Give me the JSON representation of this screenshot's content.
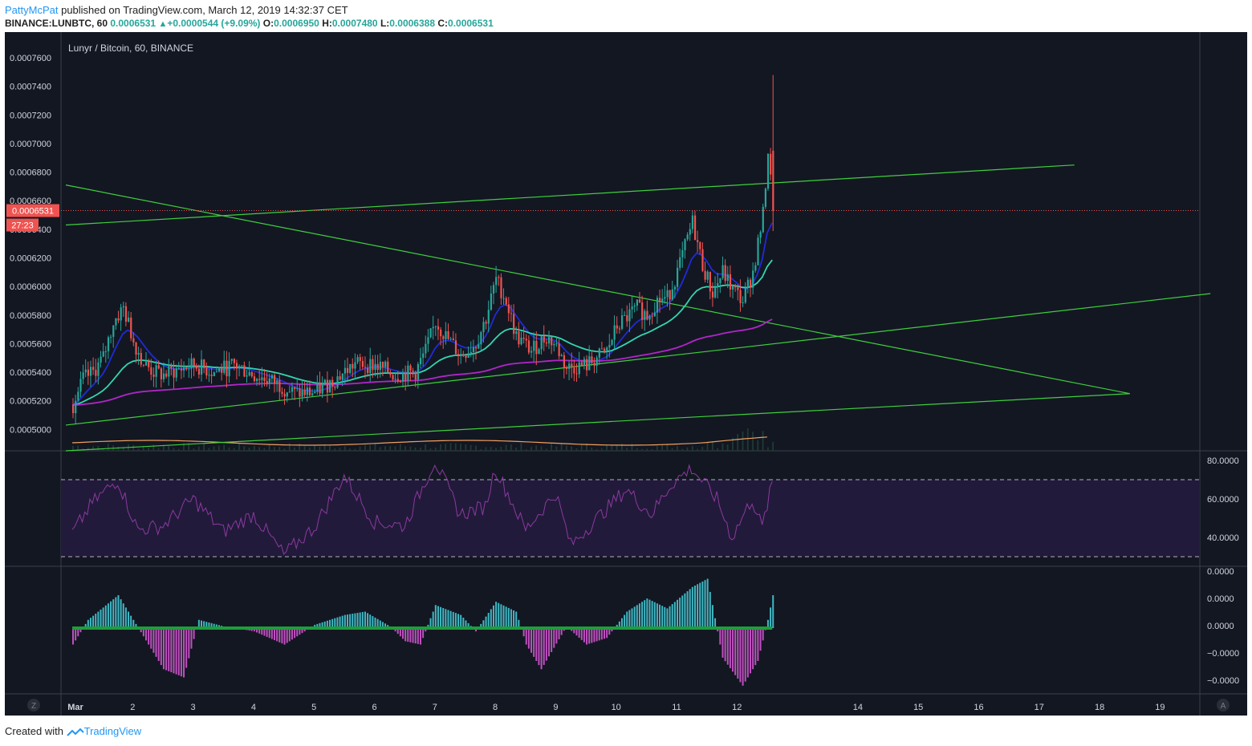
{
  "header": {
    "user": "PattyMcPat",
    "published": "published on TradingView.com, March 12, 2019 14:32:37 CET",
    "symbol": "BINANCE:LUNBTC, 60",
    "last": "0.0006531",
    "change_arrow": "▲",
    "change": "+0.0000544 (+9.09%)",
    "o_label": "O:",
    "o_value": "0.0006950",
    "h_label": "H:",
    "h_value": "0.0007480",
    "l_label": "L:",
    "l_value": "0.0006388",
    "c_label": "C:",
    "c_value": "0.0006531"
  },
  "pane_title": "Lunyr / Bitcoin, 60, BINANCE",
  "price_marker": {
    "value": "0.0006531",
    "countdown": "27:23"
  },
  "circle_buttons": {
    "left": "Z",
    "right": "A"
  },
  "footer": {
    "created_with": "Created with",
    "brand": "TradingView"
  },
  "colors": {
    "background": "#131722",
    "up": "#26a69a",
    "down": "#ef5350",
    "trendline": "#3ecf3e",
    "ema_fast": "#1f2bd6",
    "ema_mid": "#33d6b0",
    "ema_slow": "#b026c8",
    "volume_ma": "#f0a060",
    "rsi": "#8a3aa0",
    "macd_pos": "#3fb8c4",
    "macd_neg": "#c050c0"
  },
  "chart_data": [
    {
      "type": "candlestick",
      "title": "Lunyr / Bitcoin, 60, BINANCE",
      "interval_minutes": 60,
      "x_ticks": [
        "Mar",
        "2",
        "3",
        "4",
        "5",
        "6",
        "7",
        "8",
        "9",
        "10",
        "11",
        "12",
        "14",
        "15",
        "16",
        "17",
        "18",
        "19"
      ],
      "y_ticks": [
        "0.0005000",
        "0.0005200",
        "0.0005400",
        "0.0005600",
        "0.0005800",
        "0.0006000",
        "0.0006200",
        "0.0006400",
        "0.0006600",
        "0.0006800",
        "0.0007000",
        "0.0007200",
        "0.0007400",
        "0.0007600"
      ],
      "ylim": [
        0.000485,
        0.000778
      ],
      "x_range_days": [
        "2019-03-01",
        "2019-03-20"
      ],
      "price_path": [
        [
          "2019-03-01 00:00",
          0.000517
        ],
        [
          "2019-03-01 04:00",
          0.000535
        ],
        [
          "2019-03-01 08:00",
          0.00054
        ],
        [
          "2019-03-01 12:00",
          0.00055
        ],
        [
          "2019-03-01 16:00",
          0.000575
        ],
        [
          "2019-03-01 20:00",
          0.000585
        ],
        [
          "2019-03-02 00:00",
          0.000562
        ],
        [
          "2019-03-02 04:00",
          0.000546
        ],
        [
          "2019-03-02 08:00",
          0.00054
        ],
        [
          "2019-03-02 12:00",
          0.000538
        ],
        [
          "2019-03-02 18:00",
          0.000542
        ],
        [
          "2019-03-03 00:00",
          0.000545
        ],
        [
          "2019-03-03 08:00",
          0.00054
        ],
        [
          "2019-03-03 16:00",
          0.000545
        ],
        [
          "2019-03-04 00:00",
          0.000538
        ],
        [
          "2019-03-04 08:00",
          0.000533
        ],
        [
          "2019-03-04 16:00",
          0.000525
        ],
        [
          "2019-03-05 00:00",
          0.000526
        ],
        [
          "2019-03-05 08:00",
          0.000535
        ],
        [
          "2019-03-05 16:00",
          0.000546
        ],
        [
          "2019-03-06 00:00",
          0.000545
        ],
        [
          "2019-03-06 08:00",
          0.000538
        ],
        [
          "2019-03-06 16:00",
          0.00054
        ],
        [
          "2019-03-06 20:00",
          0.000555
        ],
        [
          "2019-03-07 00:00",
          0.000575
        ],
        [
          "2019-03-07 04:00",
          0.000565
        ],
        [
          "2019-03-07 10:00",
          0.000552
        ],
        [
          "2019-03-07 16:00",
          0.00056
        ],
        [
          "2019-03-07 20:00",
          0.000578
        ],
        [
          "2019-03-08 00:00",
          0.000605
        ],
        [
          "2019-03-08 04:00",
          0.00059
        ],
        [
          "2019-03-08 08:00",
          0.000565
        ],
        [
          "2019-03-08 14:00",
          0.000555
        ],
        [
          "2019-03-08 20:00",
          0.000565
        ],
        [
          "2019-03-09 00:00",
          0.000558
        ],
        [
          "2019-03-09 04:00",
          0.000543
        ],
        [
          "2019-03-09 12:00",
          0.000545
        ],
        [
          "2019-03-09 20:00",
          0.000555
        ],
        [
          "2019-03-10 00:00",
          0.000572
        ],
        [
          "2019-03-10 08:00",
          0.000585
        ],
        [
          "2019-03-10 12:00",
          0.00058
        ],
        [
          "2019-03-10 16:00",
          0.00059
        ],
        [
          "2019-03-10 20:00",
          0.000592
        ],
        [
          "2019-03-11 00:00",
          0.00061
        ],
        [
          "2019-03-11 06:00",
          0.000645
        ],
        [
          "2019-03-11 10:00",
          0.000615
        ],
        [
          "2019-03-11 14:00",
          0.000595
        ],
        [
          "2019-03-11 18:00",
          0.00061
        ],
        [
          "2019-03-11 22:00",
          0.000598
        ],
        [
          "2019-03-12 02:00",
          0.00059
        ],
        [
          "2019-03-12 06:00",
          0.00061
        ],
        [
          "2019-03-12 10:00",
          0.00065
        ],
        [
          "2019-03-12 12:00",
          0.000695
        ],
        [
          "2019-03-12 14:00",
          0.0006531
        ]
      ],
      "last_candle": {
        "open": 0.000695,
        "high": 0.000748,
        "low": 0.0006388,
        "close": 0.0006531
      },
      "overlays": [
        {
          "kind": "ema_fast"
        },
        {
          "kind": "ema_mid"
        },
        {
          "kind": "ema_slow"
        },
        {
          "kind": "volume_ma"
        }
      ],
      "trendlines": [
        {
          "from": [
            "2019-03-01 00:00",
            0.000643
          ],
          "to": [
            "2019-03-17 14:00",
            0.000685
          ]
        },
        {
          "from": [
            "2019-03-01 00:00",
            0.000671
          ],
          "to": [
            "2019-03-18 12:00",
            0.000525
          ]
        },
        {
          "from": [
            "2019-03-01 00:00",
            0.000503
          ],
          "to": [
            "2019-03-19 20:00",
            0.000595
          ]
        },
        {
          "from": [
            "2019-03-01 00:00",
            0.000485
          ],
          "to": [
            "2019-03-18 12:00",
            0.000525
          ]
        }
      ],
      "last_price_line": 0.0006531
    },
    {
      "type": "line",
      "indicator": "RSI",
      "y_ticks": [
        "40.0000",
        "60.0000",
        "80.0000"
      ],
      "ylim": [
        25,
        85
      ],
      "band": [
        30,
        70
      ],
      "values_path": [
        [
          "2019-03-01 00:00",
          42
        ],
        [
          "2019-03-01 08:00",
          58
        ],
        [
          "2019-03-01 18:00",
          70
        ],
        [
          "2019-03-02 02:00",
          44
        ],
        [
          "2019-03-02 12:00",
          46
        ],
        [
          "2019-03-03 00:00",
          60
        ],
        [
          "2019-03-03 12:00",
          43
        ],
        [
          "2019-03-04 00:00",
          52
        ],
        [
          "2019-03-04 12:00",
          31
        ],
        [
          "2019-03-05 00:00",
          45
        ],
        [
          "2019-03-05 12:00",
          72
        ],
        [
          "2019-03-06 00:00",
          48
        ],
        [
          "2019-03-06 12:00",
          46
        ],
        [
          "2019-03-07 00:00",
          80
        ],
        [
          "2019-03-07 10:00",
          52
        ],
        [
          "2019-03-07 20:00",
          56
        ],
        [
          "2019-03-08 00:00",
          76
        ],
        [
          "2019-03-08 12:00",
          44
        ],
        [
          "2019-03-09 00:00",
          63
        ],
        [
          "2019-03-09 06:00",
          36
        ],
        [
          "2019-03-09 18:00",
          52
        ],
        [
          "2019-03-10 04:00",
          65
        ],
        [
          "2019-03-10 14:00",
          52
        ],
        [
          "2019-03-10 22:00",
          68
        ],
        [
          "2019-03-11 06:00",
          76
        ],
        [
          "2019-03-11 16:00",
          60
        ],
        [
          "2019-03-11 22:00",
          40
        ],
        [
          "2019-03-12 06:00",
          60
        ],
        [
          "2019-03-12 10:00",
          45
        ],
        [
          "2019-03-12 14:00",
          68
        ]
      ]
    },
    {
      "type": "bar",
      "indicator": "MACD histogram",
      "y_ticks": [
        "0.0000",
        "0.0000",
        "0.0000",
        "−0.0000",
        "−0.0000"
      ],
      "ylim": [
        -4e-06,
        4e-06
      ],
      "values_path": [
        [
          "2019-03-01 00:00",
          -1e-06
        ],
        [
          "2019-03-01 06:00",
          5e-07
        ],
        [
          "2019-03-01 18:00",
          2e-06
        ],
        [
          "2019-03-02 00:00",
          5e-07
        ],
        [
          "2019-03-02 12:00",
          -2.5e-06
        ],
        [
          "2019-03-02 20:00",
          -3e-06
        ],
        [
          "2019-03-03 02:00",
          5e-07
        ],
        [
          "2019-03-03 12:00",
          1e-07
        ],
        [
          "2019-03-04 00:00",
          -2e-07
        ],
        [
          "2019-03-04 12:00",
          -1e-06
        ],
        [
          "2019-03-05 00:00",
          2e-07
        ],
        [
          "2019-03-05 12:00",
          8e-07
        ],
        [
          "2019-03-05 20:00",
          1e-06
        ],
        [
          "2019-03-06 06:00",
          1e-07
        ],
        [
          "2019-03-06 12:00",
          -8e-07
        ],
        [
          "2019-03-06 18:00",
          -1e-06
        ],
        [
          "2019-03-07 00:00",
          1.4e-06
        ],
        [
          "2019-03-07 10:00",
          8e-07
        ],
        [
          "2019-03-07 16:00",
          -2e-07
        ],
        [
          "2019-03-08 00:00",
          1.6e-06
        ],
        [
          "2019-03-08 08:00",
          1e-06
        ],
        [
          "2019-03-08 12:00",
          -1e-06
        ],
        [
          "2019-03-08 18:00",
          -2.5e-06
        ],
        [
          "2019-03-09 04:00",
          1e-07
        ],
        [
          "2019-03-09 12:00",
          -1e-06
        ],
        [
          "2019-03-09 20:00",
          -6e-07
        ],
        [
          "2019-03-10 04:00",
          1e-06
        ],
        [
          "2019-03-10 12:00",
          1.8e-06
        ],
        [
          "2019-03-10 20:00",
          1.2e-06
        ],
        [
          "2019-03-11 06:00",
          2.5e-06
        ],
        [
          "2019-03-11 12:00",
          3e-06
        ],
        [
          "2019-03-11 18:00",
          -1.8e-06
        ],
        [
          "2019-03-12 02:00",
          -3.5e-06
        ],
        [
          "2019-03-12 08:00",
          -2e-06
        ],
        [
          "2019-03-12 12:00",
          5e-07
        ],
        [
          "2019-03-12 14:00",
          2e-06
        ]
      ]
    }
  ]
}
